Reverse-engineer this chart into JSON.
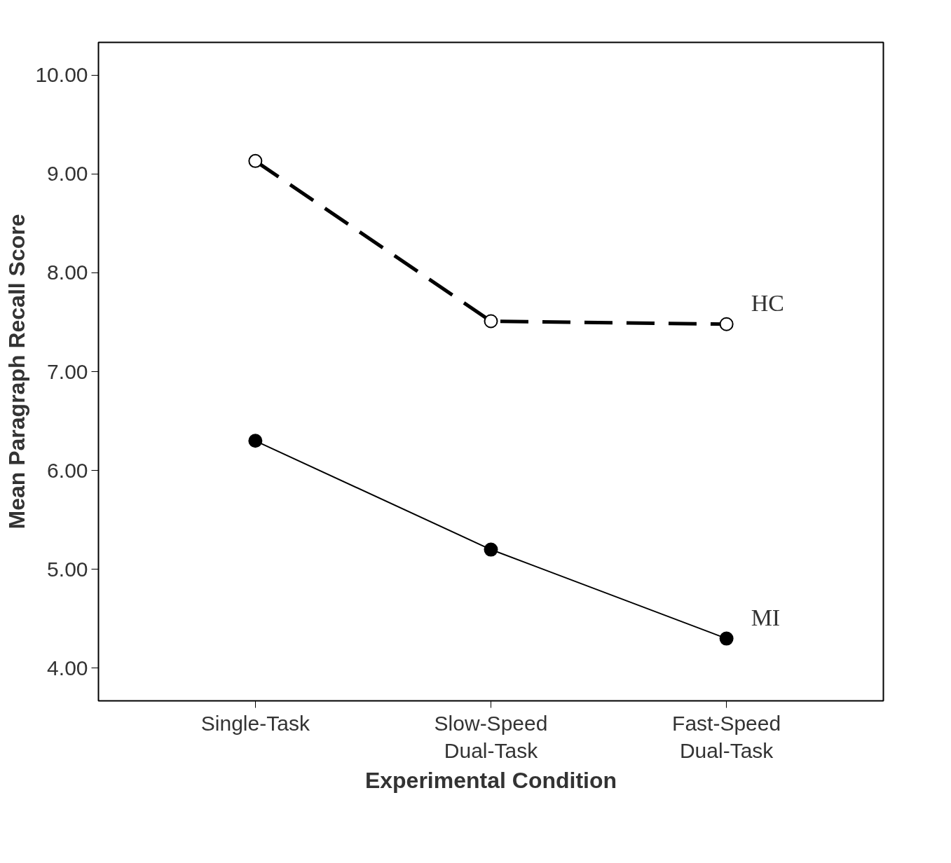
{
  "chart_data": {
    "type": "line",
    "xlabel": "Experimental Condition",
    "ylabel": "Mean Paragraph Recall Score",
    "categories": [
      "Single-Task",
      "Slow-Speed\nDual-Task",
      "Fast-Speed\nDual-Task"
    ],
    "series": [
      {
        "name": "HC",
        "color": "#000000",
        "values": [
          9.13,
          7.51,
          7.48
        ],
        "line_style": "dashed",
        "marker": "circle"
      },
      {
        "name": "MI",
        "color": "#000000",
        "values": [
          6.3,
          5.2,
          4.3
        ],
        "line_style": "solid",
        "marker": "circle"
      }
    ],
    "ylim": [
      3.67,
      10.33
    ],
    "yticks": [
      {
        "value": 4,
        "label": "4.00"
      },
      {
        "value": 5,
        "label": "5.00"
      },
      {
        "value": 6,
        "label": "6.00"
      },
      {
        "value": 7,
        "label": "7.00"
      },
      {
        "value": 8,
        "label": "8.00"
      },
      {
        "value": 9,
        "label": "9.00"
      },
      {
        "value": 10,
        "label": "10.00"
      }
    ],
    "grid": false,
    "legend": false
  }
}
